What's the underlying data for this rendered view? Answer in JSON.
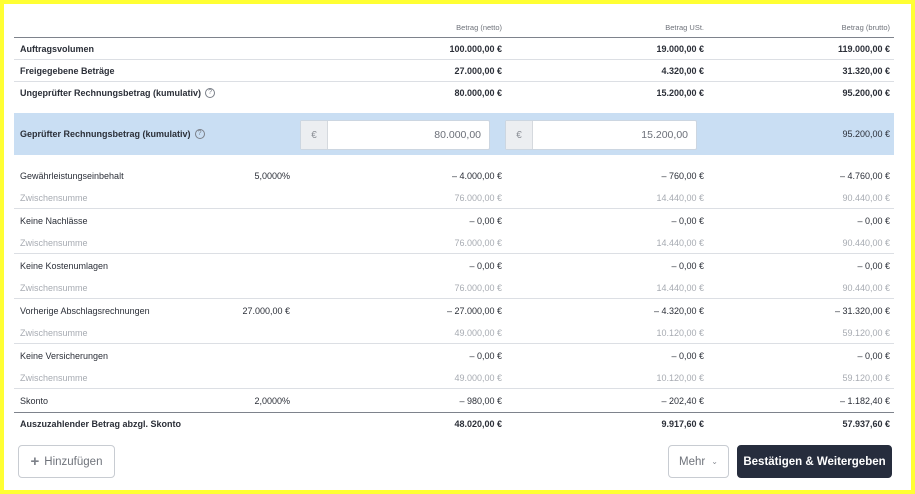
{
  "columns": {
    "net": "Betrag (netto)",
    "ust": "Betrag USt.",
    "brutto": "Betrag (brutto)"
  },
  "summary": [
    {
      "label": "Auftragsvolumen",
      "net": "100.000,00 €",
      "ust": "19.000,00 €",
      "brutto": "119.000,00 €"
    },
    {
      "label": "Freigegebene Beträge",
      "net": "27.000,00 €",
      "ust": "4.320,00 €",
      "brutto": "31.320,00 €"
    },
    {
      "label": "Ungeprüfter Rechnungsbetrag (kumulativ)",
      "net": "80.000,00 €",
      "ust": "15.200,00 €",
      "brutto": "95.200,00 €"
    }
  ],
  "checked": {
    "label": "Geprüfter Rechnungsbetrag (kumulativ)",
    "currency": "€",
    "net_value": "80.000,00",
    "ust_value": "15.200,00",
    "brutto": "95.200,00 €"
  },
  "sections": [
    {
      "label": "Gewährleistungseinbehalt",
      "pct": "5,0000%",
      "net": "– 4.000,00 €",
      "ust": "– 760,00 €",
      "brutto": "– 4.760,00 €",
      "sub": {
        "label": "Zwischensumme",
        "net": "76.000,00 €",
        "ust": "14.440,00 €",
        "brutto": "90.440,00 €"
      }
    },
    {
      "label": "Keine Nachlässe",
      "pct": "",
      "net": "– 0,00 €",
      "ust": "– 0,00 €",
      "brutto": "– 0,00 €",
      "sub": {
        "label": "Zwischensumme",
        "net": "76.000,00 €",
        "ust": "14.440,00 €",
        "brutto": "90.440,00 €"
      }
    },
    {
      "label": "Keine Kostenumlagen",
      "pct": "",
      "net": "– 0,00 €",
      "ust": "– 0,00 €",
      "brutto": "– 0,00 €",
      "sub": {
        "label": "Zwischensumme",
        "net": "76.000,00 €",
        "ust": "14.440,00 €",
        "brutto": "90.440,00 €"
      }
    },
    {
      "label": "Vorherige Abschlagsrechnungen",
      "pct": "27.000,00 €",
      "net": "– 27.000,00 €",
      "ust": "– 4.320,00 €",
      "brutto": "– 31.320,00 €",
      "sub": {
        "label": "Zwischensumme",
        "net": "49.000,00 €",
        "ust": "10.120,00 €",
        "brutto": "59.120,00 €"
      }
    },
    {
      "label": "Keine Versicherungen",
      "pct": "",
      "net": "– 0,00 €",
      "ust": "– 0,00 €",
      "brutto": "– 0,00 €",
      "sub": {
        "label": "Zwischensumme",
        "net": "49.000,00 €",
        "ust": "10.120,00 €",
        "brutto": "59.120,00 €"
      }
    }
  ],
  "skonto": {
    "label": "Skonto",
    "pct": "2,0000%",
    "net": "– 980,00 €",
    "ust": "– 202,40 €",
    "brutto": "– 1.182,40 €"
  },
  "total": {
    "label": "Auszuzahlender Betrag abzgl. Skonto",
    "net": "48.020,00 €",
    "ust": "9.917,60 €",
    "brutto": "57.937,60 €"
  },
  "buttons": {
    "add": "Hinzufügen",
    "more": "Mehr",
    "confirm": "Bestätigen & Weitergeben"
  },
  "icons": {
    "help": "question-circle-icon",
    "plus": "plus-icon",
    "chevron": "chevron-down-icon"
  },
  "colors": {
    "highlight_row": "#c9def3",
    "primary_button": "#262d3d",
    "frame": "#ffff33"
  }
}
